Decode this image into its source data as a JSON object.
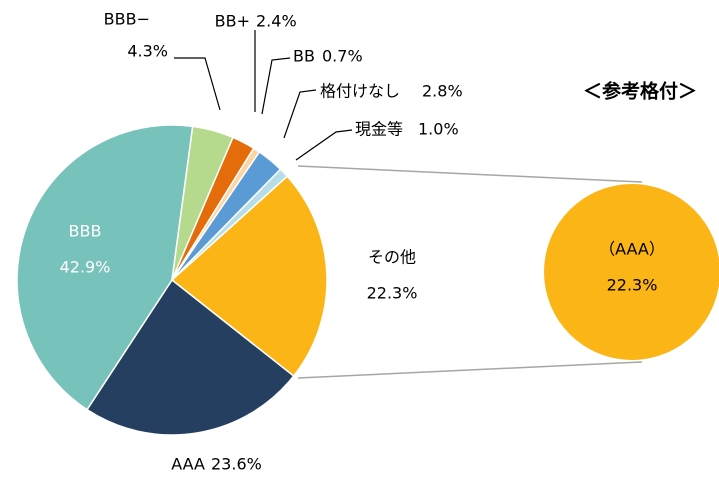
{
  "chart_data": {
    "type": "pie",
    "categories": [
      "その他",
      "AAA",
      "BBB",
      "BBB−",
      "BB+",
      "BB",
      "格付けなし",
      "現金等"
    ],
    "values": [
      22.3,
      23.6,
      42.9,
      4.3,
      2.4,
      0.7,
      2.8,
      1.0
    ],
    "value_labels": [
      "22.3%",
      "23.6%",
      "42.9%",
      "4.3%",
      "2.4%",
      "0.7%",
      "2.8%",
      "1.0%"
    ],
    "colors": [
      "#fbb516",
      "#253f60",
      "#78c2bc",
      "#b5d98d",
      "#e46c0a",
      "#fcd5a3",
      "#5b9bd5",
      "#b7dee8"
    ],
    "detail": {
      "title": "＜参考格付＞",
      "label": "（AAA）",
      "value": 22.3,
      "value_label": "22.3%",
      "color": "#fbb516"
    }
  }
}
